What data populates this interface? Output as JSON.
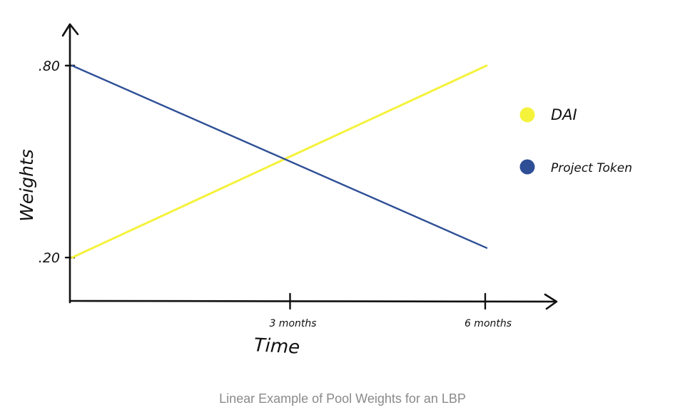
{
  "caption": "Linear Example of Pool Weights for an LBP",
  "chart_data": {
    "type": "line",
    "title": "",
    "xlabel": "Time",
    "ylabel": "Weights",
    "x": [
      0,
      6
    ],
    "x_tick_values": [
      3,
      6
    ],
    "x_tick_labels": [
      "3 months",
      "6 months"
    ],
    "y_tick_values": [
      0.2,
      0.8
    ],
    "y_tick_labels": [
      ".20",
      ".80"
    ],
    "xlim": [
      0,
      6
    ],
    "ylim": [
      0.06,
      0.8
    ],
    "grid": false,
    "legend_position": "right",
    "series": [
      {
        "name": "DAI",
        "color": "#f5f23c",
        "values": [
          0.2,
          0.8
        ]
      },
      {
        "name": "Project Token",
        "color": "#2e4f96",
        "values": [
          0.8,
          0.23
        ]
      }
    ]
  }
}
